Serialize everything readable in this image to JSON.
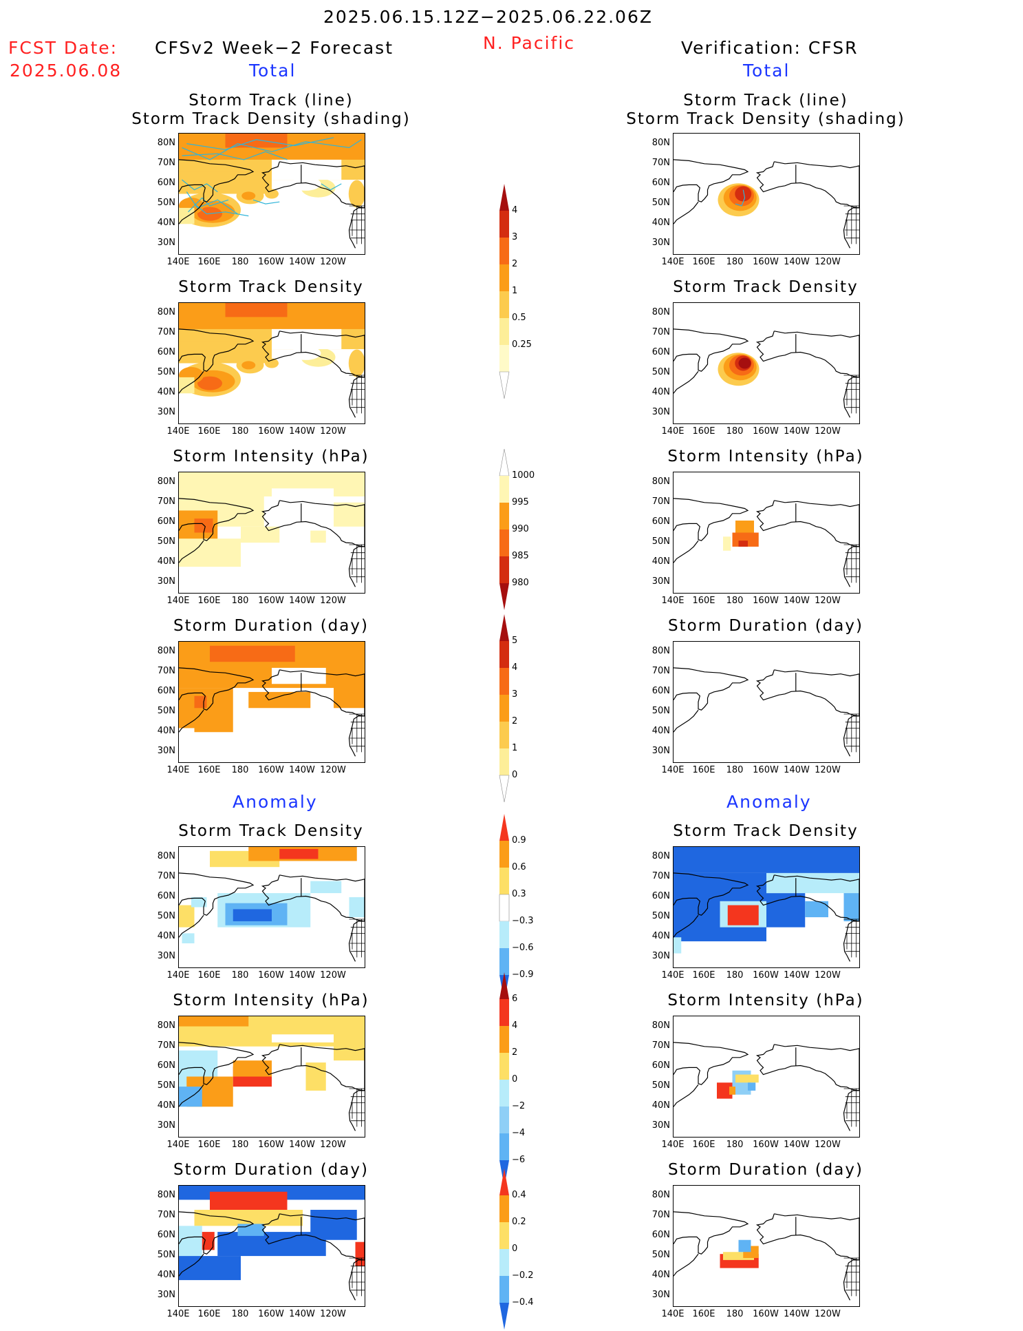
{
  "header": {
    "period": "2025.06.15.12Z−2025.06.22.06Z",
    "fcst_label": "FCST Date:",
    "fcst_date": "2025.06.08",
    "region": "N. Pacific",
    "left_title": "CFSv2 Week−2 Forecast",
    "right_title": "Verification: CFSR",
    "total_label": "Total",
    "anomaly_label": "Anomaly"
  },
  "panel_titles": {
    "track_line": "Storm Track (line)",
    "track_shading": "Storm Track Density (shading)",
    "density": "Storm Track Density",
    "intensity": "Storm Intensity (hPa)",
    "duration": "Storm Duration (day)"
  },
  "axes": {
    "lat_ticks": [
      "80N",
      "70N",
      "60N",
      "50N",
      "40N",
      "30N"
    ],
    "lon_ticks": [
      "140E",
      "160E",
      "180",
      "160W",
      "140W",
      "120W"
    ]
  },
  "colorbars": {
    "density_total": {
      "labels": [
        "4",
        "3",
        "2",
        "1",
        "0.5",
        "0.25"
      ],
      "colors": [
        "#a50f0f",
        "#d42d10",
        "#f76b16",
        "#fb9d18",
        "#fccb4e",
        "#fdee98",
        "#fffac8",
        "#ffffff"
      ]
    },
    "intensity_total": {
      "labels": [
        "1000",
        "995",
        "990",
        "985",
        "980"
      ],
      "colors": [
        "#ffffff",
        "#fff6b4",
        "#fb9d18",
        "#f76b16",
        "#d42d10",
        "#a50f0f"
      ]
    },
    "duration_total": {
      "labels": [
        "5",
        "4",
        "3",
        "2",
        "1",
        "0"
      ],
      "colors": [
        "#a50f0f",
        "#d42d10",
        "#f76b16",
        "#fb9d18",
        "#fccb4e",
        "#fdee98",
        "#ffffff"
      ]
    },
    "density_anom": {
      "labels": [
        "0.9",
        "0.6",
        "0.3",
        "−0.3",
        "−0.6",
        "−0.9"
      ],
      "colors": [
        "#f4361e",
        "#fb9d18",
        "#fddf66",
        "#ffffff",
        "#b7ecfa",
        "#5fb3f4",
        "#1f67e0"
      ]
    },
    "intensity_anom": {
      "labels": [
        "6",
        "4",
        "2",
        "0",
        "−2",
        "−4",
        "−6"
      ],
      "colors": [
        "#a50f0f",
        "#f4361e",
        "#fb9d18",
        "#fddf66",
        "#b7ecfa",
        "#8fcff6",
        "#5fb3f4",
        "#1f67e0"
      ]
    },
    "duration_anom": {
      "labels": [
        "0.4",
        "0.2",
        "0",
        "−0.2",
        "−0.4"
      ],
      "colors": [
        "#f4361e",
        "#fb9d18",
        "#fddf66",
        "#b7ecfa",
        "#5fb3f4",
        "#1f67e0"
      ]
    }
  },
  "colors": {
    "title_red": "#ff2020",
    "label_blue": "#1a35ff",
    "track_line": "#2fb4d8"
  }
}
